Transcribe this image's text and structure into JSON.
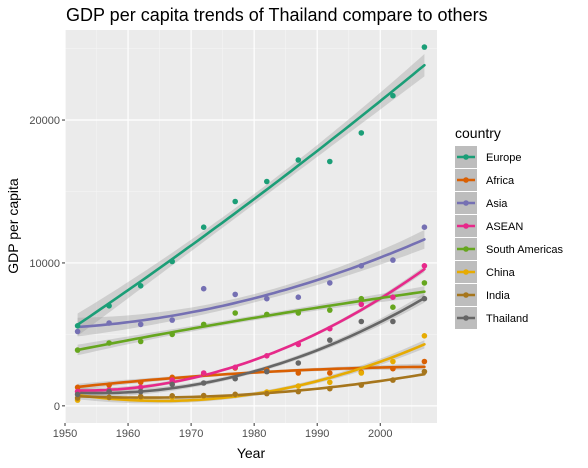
{
  "chart_data": {
    "type": "line",
    "title": "GDP per capita trends of Thailand compare to others",
    "xlabel": "Year",
    "ylabel": "GDP per capita",
    "xlim": [
      1950,
      2009
    ],
    "ylim": [
      -1200,
      26300
    ],
    "x_ticks": [
      1950,
      1960,
      1970,
      1980,
      1990,
      2000
    ],
    "y_ticks": [
      0,
      10000,
      20000
    ],
    "y_tick_labels": [
      "0",
      "10000",
      "20000"
    ],
    "grid": true,
    "legend_position": "right",
    "legend_title": "country",
    "x": [
      1952,
      1957,
      1962,
      1967,
      1972,
      1977,
      1982,
      1987,
      1992,
      1997,
      2002,
      2007
    ],
    "series": [
      {
        "name": "Europe",
        "color": "#1b9e77",
        "values": [
          5600,
          7000,
          8400,
          10100,
          12500,
          14300,
          15700,
          17200,
          17100,
          19100,
          21700,
          25100
        ]
      },
      {
        "name": "Africa",
        "color": "#d95f02",
        "values": [
          1300,
          1450,
          1650,
          2000,
          2250,
          2650,
          2500,
          2300,
          2300,
          2350,
          2600,
          3100
        ]
      },
      {
        "name": "Asia",
        "color": "#7570b3",
        "values": [
          5200,
          5800,
          5700,
          6000,
          8200,
          7800,
          7500,
          7600,
          8600,
          9800,
          10200,
          12500
        ]
      },
      {
        "name": "ASEAN",
        "color": "#e7298a",
        "values": [
          1000,
          1100,
          1300,
          1800,
          2300,
          2700,
          3500,
          4300,
          5400,
          7100,
          7600,
          9800
        ]
      },
      {
        "name": "South Americas",
        "color": "#66a61e",
        "values": [
          3900,
          4400,
          4500,
          5000,
          5700,
          6500,
          6400,
          6500,
          6700,
          7500,
          6900,
          8600
        ]
      },
      {
        "name": "China",
        "color": "#e6ab02",
        "values": [
          400,
          580,
          490,
          610,
          680,
          740,
          960,
          1380,
          1650,
          2300,
          3100,
          4900
        ]
      },
      {
        "name": "India",
        "color": "#a6761d",
        "values": [
          550,
          600,
          650,
          700,
          720,
          810,
          860,
          1000,
          1200,
          1450,
          1800,
          2400
        ]
      },
      {
        "name": "Thailand",
        "color": "#666666",
        "values": [
          800,
          1000,
          1000,
          1500,
          1600,
          1900,
          2400,
          3000,
          4600,
          5900,
          5900,
          7500
        ]
      }
    ]
  }
}
